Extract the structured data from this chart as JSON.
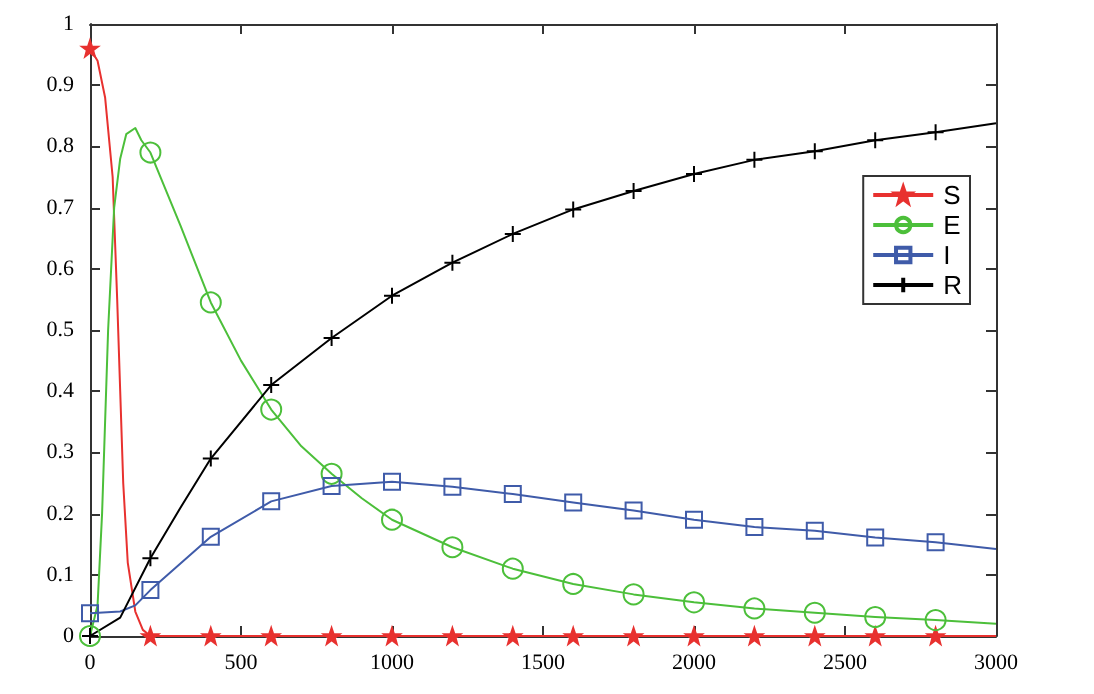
{
  "chart_data": {
    "type": "line",
    "xlim": [
      0,
      3000
    ],
    "xticks": [
      0,
      500,
      1000,
      1500,
      2000,
      2500,
      3000
    ],
    "ylim": [
      0,
      1
    ],
    "yticks": [
      0,
      0.1,
      0.2,
      0.3,
      0.4,
      0.5,
      0.6,
      0.7,
      0.8,
      0.9,
      1
    ],
    "grid": false,
    "legend": "right",
    "line_style": "solid",
    "series": [
      {
        "name": "S",
        "color": "#e8312f",
        "marker": "star",
        "x": [
          0,
          25,
          50,
          75,
          90,
          100,
          110,
          125,
          150,
          175,
          200,
          400,
          600,
          800,
          1000,
          1200,
          1400,
          1600,
          1800,
          2000,
          2200,
          2400,
          2600,
          2800,
          3000
        ],
        "values": [
          0.96,
          0.94,
          0.88,
          0.75,
          0.55,
          0.4,
          0.25,
          0.12,
          0.04,
          0.01,
          0,
          0,
          0,
          0,
          0,
          0,
          0,
          0,
          0,
          0,
          0,
          0,
          0,
          0,
          0
        ]
      },
      {
        "name": "E",
        "color": "#4cbf3a",
        "marker": "circle",
        "x": [
          0,
          25,
          40,
          60,
          80,
          100,
          120,
          150,
          170,
          200,
          300,
          400,
          500,
          600,
          700,
          800,
          900,
          1000,
          1200,
          1400,
          1600,
          1800,
          2000,
          2200,
          2400,
          2600,
          2800,
          3000
        ],
        "values": [
          0,
          0.05,
          0.2,
          0.5,
          0.7,
          0.78,
          0.82,
          0.83,
          0.81,
          0.79,
          0.67,
          0.545,
          0.45,
          0.37,
          0.31,
          0.265,
          0.225,
          0.19,
          0.145,
          0.11,
          0.085,
          0.068,
          0.055,
          0.045,
          0.038,
          0.031,
          0.026,
          0.02
        ]
      },
      {
        "name": "I",
        "color": "#3f5ba9",
        "marker": "square",
        "x": [
          0,
          100,
          150,
          200,
          400,
          600,
          800,
          1000,
          1200,
          1400,
          1600,
          1800,
          2000,
          2200,
          2400,
          2600,
          2800,
          3000
        ],
        "values": [
          0.037,
          0.04,
          0.05,
          0.075,
          0.162,
          0.22,
          0.245,
          0.252,
          0.244,
          0.232,
          0.218,
          0.205,
          0.19,
          0.178,
          0.172,
          0.161,
          0.153,
          0.142
        ]
      },
      {
        "name": "R",
        "color": "#000000",
        "marker": "cross",
        "x": [
          0,
          100,
          200,
          300,
          400,
          600,
          800,
          1000,
          1200,
          1400,
          1600,
          1800,
          2000,
          2200,
          2400,
          2600,
          2800,
          3000
        ],
        "values": [
          0,
          0.03,
          0.127,
          0.21,
          0.29,
          0.41,
          0.487,
          0.556,
          0.61,
          0.657,
          0.697,
          0.727,
          0.755,
          0.778,
          0.792,
          0.81,
          0.823,
          0.838
        ]
      }
    ]
  }
}
